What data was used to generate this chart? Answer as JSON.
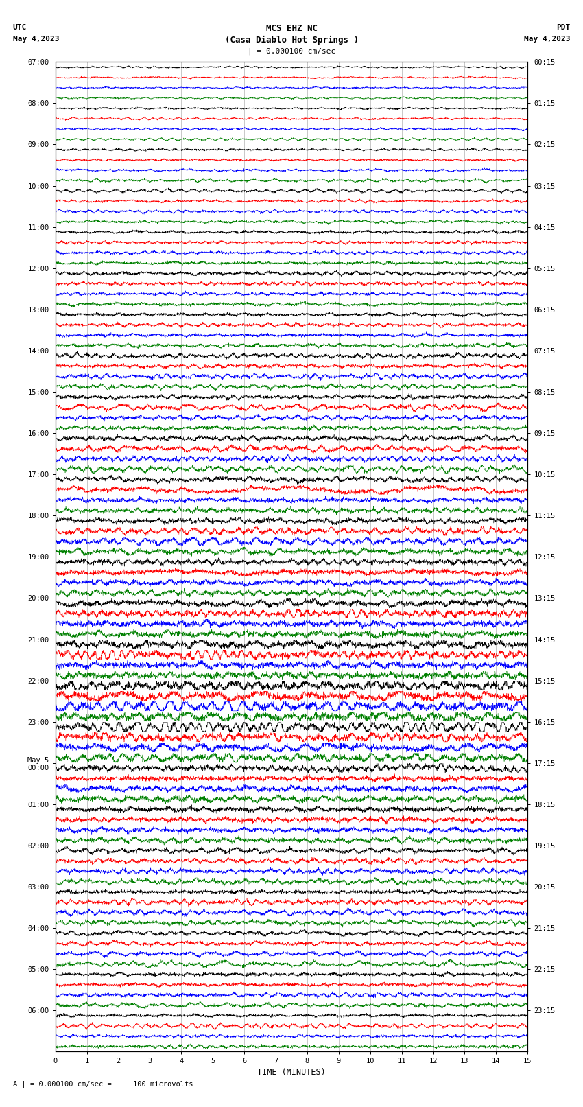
{
  "title_line1": "MCS EHZ NC",
  "title_line2": "(Casa Diablo Hot Springs )",
  "scale_label": "| = 0.000100 cm/sec",
  "bottom_label": "A | = 0.000100 cm/sec =     100 microvolts",
  "xlabel": "TIME (MINUTES)",
  "n_rows": 96,
  "n_minutes": 15,
  "colors": [
    "black",
    "red",
    "blue",
    "green"
  ],
  "bg_color": "#ffffff",
  "random_seed": 42,
  "left_tick_hours": [
    "07:00",
    "08:00",
    "09:00",
    "10:00",
    "11:00",
    "12:00",
    "13:00",
    "14:00",
    "15:00",
    "16:00",
    "17:00",
    "18:00",
    "19:00",
    "20:00",
    "21:00",
    "22:00",
    "23:00",
    "May 5\n00:00",
    "01:00",
    "02:00",
    "03:00",
    "04:00",
    "05:00",
    "06:00"
  ],
  "right_tick_hours": [
    "00:15",
    "01:15",
    "02:15",
    "03:15",
    "04:15",
    "05:15",
    "06:15",
    "07:15",
    "08:15",
    "09:15",
    "10:15",
    "11:15",
    "12:15",
    "13:15",
    "14:15",
    "15:15",
    "16:15",
    "17:15",
    "18:15",
    "19:15",
    "20:15",
    "21:15",
    "22:15",
    "23:15"
  ],
  "noise_by_row_group": [
    0.05,
    0.05,
    0.05,
    0.05,
    0.06,
    0.06,
    0.06,
    0.06,
    0.07,
    0.07,
    0.07,
    0.07,
    0.08,
    0.08,
    0.08,
    0.08,
    0.09,
    0.09,
    0.09,
    0.09,
    0.1,
    0.1,
    0.1,
    0.1,
    0.11,
    0.11,
    0.11,
    0.11,
    0.12,
    0.12,
    0.12,
    0.12,
    0.13,
    0.13,
    0.13,
    0.13,
    0.14,
    0.14,
    0.14,
    0.14,
    0.15,
    0.15,
    0.15,
    0.15,
    0.16,
    0.16,
    0.16,
    0.16,
    0.17,
    0.17,
    0.17,
    0.17,
    0.19,
    0.19,
    0.19,
    0.19,
    0.22,
    0.22,
    0.22,
    0.22,
    0.25,
    0.25,
    0.25,
    0.25,
    0.22,
    0.22,
    0.22,
    0.22,
    0.18,
    0.18,
    0.18,
    0.18,
    0.16,
    0.16,
    0.16,
    0.16,
    0.14,
    0.14,
    0.14,
    0.14,
    0.13,
    0.13,
    0.13,
    0.13,
    0.12,
    0.12,
    0.12,
    0.12,
    0.11,
    0.11,
    0.11,
    0.11,
    0.1,
    0.1,
    0.1,
    0.1
  ]
}
